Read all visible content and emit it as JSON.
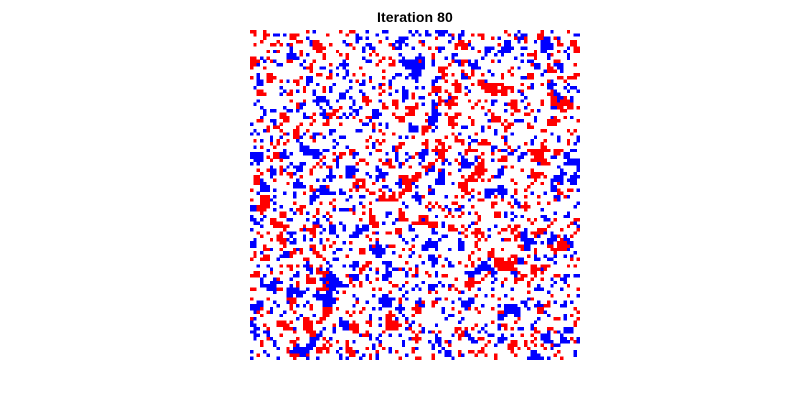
{
  "figure": {
    "title": "Iteration 80"
  },
  "lattice": {
    "rows": 100,
    "cols": 100,
    "background_color": "#ffffff",
    "state_colors": {
      "red": "#ff0000",
      "blue": "#0000ff",
      "empty": "#ffffff"
    },
    "approx_fraction": {
      "red": 0.16,
      "blue": 0.16,
      "empty": 0.68
    }
  }
}
